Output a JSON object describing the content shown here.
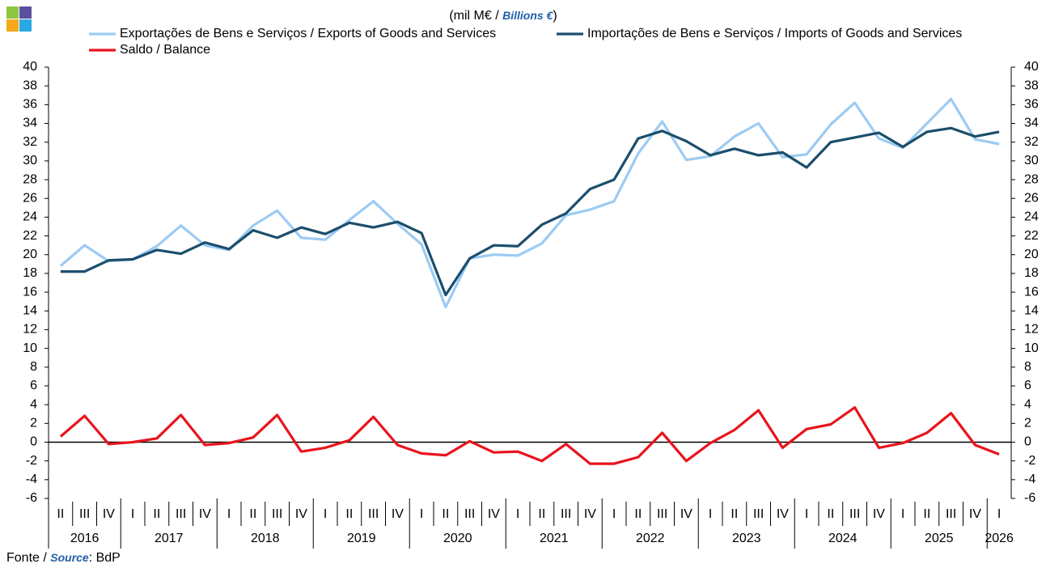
{
  "chart_data": {
    "type": "line",
    "title": [
      "(mil M€ / ",
      "Billions €",
      ")"
    ],
    "source": [
      "Fonte / ",
      "Source",
      ": BdP"
    ],
    "year_groups": [
      {
        "label": "2016",
        "quarters": [
          "II",
          "III",
          "IV"
        ]
      },
      {
        "label": "2017",
        "quarters": [
          "I",
          "II",
          "III",
          "IV"
        ]
      },
      {
        "label": "2018",
        "quarters": [
          "I",
          "II",
          "III",
          "IV"
        ]
      },
      {
        "label": "2019",
        "quarters": [
          "I",
          "II",
          "III",
          "IV"
        ]
      },
      {
        "label": "2020",
        "quarters": [
          "I",
          "II",
          "III",
          "IV"
        ]
      },
      {
        "label": "2021",
        "quarters": [
          "I",
          "II",
          "III",
          "IV"
        ]
      },
      {
        "label": "2022",
        "quarters": [
          "I",
          "II",
          "III",
          "IV"
        ]
      },
      {
        "label": "2023",
        "quarters": [
          "I",
          "II",
          "III",
          "IV"
        ]
      },
      {
        "label": "2024",
        "quarters": [
          "I",
          "II",
          "III",
          "IV"
        ]
      },
      {
        "label": "2025",
        "quarters": [
          "I",
          "II",
          "III",
          "IV"
        ]
      },
      {
        "label": "2026",
        "quarters": [
          "I"
        ]
      }
    ],
    "series": [
      {
        "name": "Exportações de Bens e Serviços / Exports of Goods and Services",
        "color": "#9ccbf3",
        "values": [
          18.8,
          21.0,
          19.3,
          19.5,
          20.9,
          23.1,
          21.0,
          20.5,
          23.1,
          24.7,
          21.8,
          21.6,
          23.7,
          25.7,
          23.3,
          21.1,
          14.4,
          19.6,
          20.0,
          19.9,
          21.2,
          24.2,
          24.8,
          25.7,
          30.8,
          34.2,
          30.1,
          30.5,
          32.6,
          34.0,
          30.4,
          30.7,
          33.9,
          36.2,
          32.4,
          31.4,
          34.0,
          36.6,
          32.3,
          31.8
        ]
      },
      {
        "name": "Importações de Bens e Serviços / Imports of Goods and Services",
        "color": "#1b4e6c",
        "values": [
          18.2,
          18.2,
          19.4,
          19.5,
          20.5,
          20.1,
          21.3,
          20.6,
          22.6,
          21.8,
          22.9,
          22.2,
          23.4,
          22.9,
          23.5,
          22.3,
          15.7,
          19.6,
          21.0,
          20.9,
          23.2,
          24.4,
          27.0,
          28.0,
          32.4,
          33.2,
          32.1,
          30.6,
          31.3,
          30.6,
          30.9,
          29.3,
          32.0,
          32.5,
          33.0,
          31.5,
          33.1,
          33.5,
          32.6,
          33.1
        ]
      },
      {
        "name": "Saldo / Balance",
        "color": "#e8141c",
        "values": [
          0.6,
          2.8,
          -0.2,
          0.0,
          0.4,
          2.9,
          -0.3,
          -0.1,
          0.5,
          2.9,
          -1.0,
          -0.6,
          0.2,
          2.7,
          -0.3,
          -1.2,
          -1.4,
          0.1,
          -1.1,
          -1.0,
          -2.0,
          -0.2,
          -2.3,
          -2.3,
          -1.6,
          1.0,
          -2.0,
          -0.1,
          1.3,
          3.4,
          -0.6,
          1.4,
          1.9,
          3.7,
          -0.6,
          -0.1,
          1.0,
          3.1,
          -0.3,
          -1.3
        ]
      }
    ],
    "ylim": [
      -6,
      40
    ],
    "yticks": [
      -6,
      -4,
      -2,
      0,
      2,
      4,
      6,
      8,
      10,
      12,
      14,
      16,
      18,
      20,
      22,
      24,
      26,
      28,
      30,
      32,
      34,
      36,
      38,
      40
    ],
    "y2lim": [
      -6,
      40
    ],
    "y2ticks": [
      -6,
      -4,
      -2,
      0,
      2,
      4,
      6,
      8,
      10,
      12,
      14,
      16,
      18,
      20,
      22,
      24,
      26,
      28,
      30,
      32,
      34,
      36,
      38,
      40
    ]
  }
}
